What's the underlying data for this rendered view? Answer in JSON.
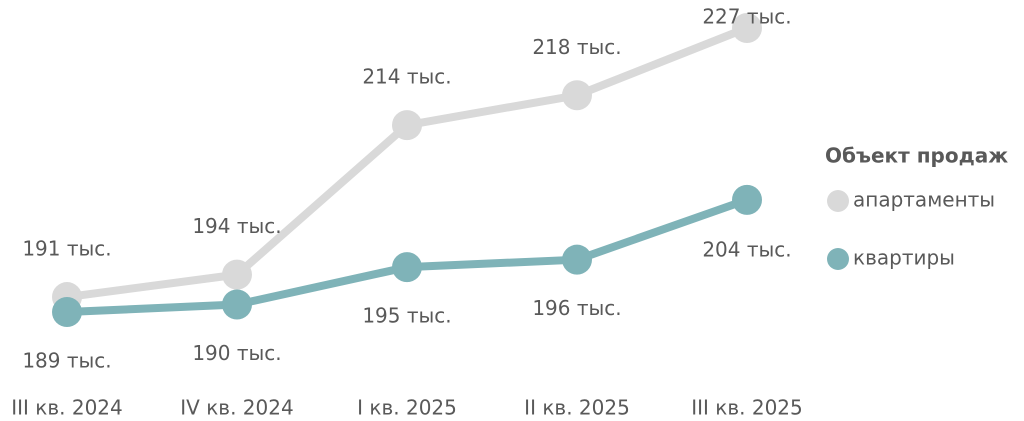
{
  "chart_data": {
    "type": "line",
    "categories": [
      "III кв. 2024",
      "IV кв. 2024",
      "I кв. 2025",
      "II кв. 2025",
      "III кв. 2025"
    ],
    "legend_title": "Объект продаж",
    "legend": "right",
    "series": [
      {
        "name": "апартаменты",
        "color": "#d9d9d9",
        "values": [
          191,
          194,
          214,
          218,
          227
        ],
        "value_labels": [
          "191 тыс.",
          "194 тыс.",
          "214 тыс.",
          "218 тыс.",
          "227 тыс."
        ]
      },
      {
        "name": "квартиры",
        "color": "#7fb3b8",
        "values": [
          189,
          190,
          195,
          196,
          204
        ],
        "value_labels": [
          "189 тыс.",
          "190 тыс.",
          "195 тыс.",
          "196 тыс.",
          "204 тыс."
        ]
      }
    ]
  }
}
